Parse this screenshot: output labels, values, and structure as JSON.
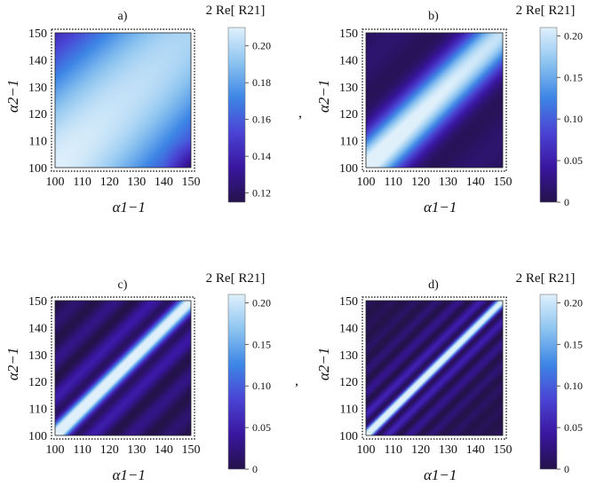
{
  "separator": ",",
  "colormap": [
    "#24124a",
    "#3a16a0",
    "#4a44d4",
    "#3d86e6",
    "#8cc4f0",
    "#dff0fb"
  ],
  "chart_data": [
    {
      "type": "heatmap",
      "panel_label": "a)",
      "xlabel": "α1−1",
      "ylabel": "α2−1",
      "x_ticks": [
        "100",
        "110",
        "120",
        "130",
        "140",
        "150"
      ],
      "y_ticks": [
        "100",
        "110",
        "120",
        "130",
        "140",
        "150"
      ],
      "xlim": [
        100,
        150
      ],
      "ylim": [
        100,
        150
      ],
      "colorbar_title": "2 Re[ R21]",
      "colorbar_ticks": [
        "0.12",
        "0.14",
        "0.16",
        "0.18",
        "0.20"
      ],
      "colorbar_tick_values": [
        0.12,
        0.14,
        0.16,
        0.18,
        0.2
      ],
      "clim": [
        0.115,
        0.21
      ],
      "pattern": {
        "kind": "smooth",
        "diag_max": 0.21,
        "corner_min": 0.115,
        "width": 70
      }
    },
    {
      "type": "heatmap",
      "panel_label": "b)",
      "xlabel": "α1−1",
      "ylabel": "α2−1",
      "x_ticks": [
        "100",
        "110",
        "120",
        "130",
        "140",
        "150"
      ],
      "y_ticks": [
        "100",
        "110",
        "120",
        "130",
        "140",
        "150"
      ],
      "xlim": [
        100,
        150
      ],
      "ylim": [
        100,
        150
      ],
      "colorbar_title": "2 Re[ R21]",
      "colorbar_ticks": [
        "0",
        "0.05",
        "0.10",
        "0.15",
        "0.20"
      ],
      "colorbar_tick_values": [
        0,
        0.05,
        0.1,
        0.15,
        0.2
      ],
      "clim": [
        0,
        0.21
      ],
      "pattern": {
        "kind": "band",
        "peak": 0.2,
        "sigma": 9,
        "side": 0.03,
        "side_period": 40
      }
    },
    {
      "type": "heatmap",
      "panel_label": "c)",
      "xlabel": "α1−1",
      "ylabel": "α2−1",
      "x_ticks": [
        "100",
        "110",
        "120",
        "130",
        "140",
        "150"
      ],
      "y_ticks": [
        "100",
        "110",
        "120",
        "130",
        "140",
        "150"
      ],
      "xlim": [
        100,
        150
      ],
      "ylim": [
        100,
        150
      ],
      "colorbar_title": "2 Re[ R21]",
      "colorbar_ticks": [
        "0",
        "0.05",
        "0.10",
        "0.15",
        "0.20"
      ],
      "colorbar_tick_values": [
        0,
        0.05,
        0.1,
        0.15,
        0.2
      ],
      "clim": [
        0,
        0.21
      ],
      "pattern": {
        "kind": "band",
        "peak": 0.2,
        "sigma": 3.2,
        "side": 0.08,
        "side_period": 14
      }
    },
    {
      "type": "heatmap",
      "panel_label": "d)",
      "xlabel": "α1−1",
      "ylabel": "α2−1",
      "x_ticks": [
        "100",
        "110",
        "120",
        "130",
        "140",
        "150"
      ],
      "y_ticks": [
        "100",
        "110",
        "120",
        "130",
        "140",
        "150"
      ],
      "xlim": [
        100,
        150
      ],
      "ylim": [
        100,
        150
      ],
      "colorbar_title": "2 Re[ R21]",
      "colorbar_ticks": [
        "0",
        "0.05",
        "0.10",
        "0.15",
        "0.20"
      ],
      "colorbar_tick_values": [
        0,
        0.05,
        0.1,
        0.15,
        0.2
      ],
      "clim": [
        0,
        0.21
      ],
      "pattern": {
        "kind": "band",
        "peak": 0.21,
        "sigma": 1.6,
        "side": 0.09,
        "side_period": 8
      }
    }
  ]
}
